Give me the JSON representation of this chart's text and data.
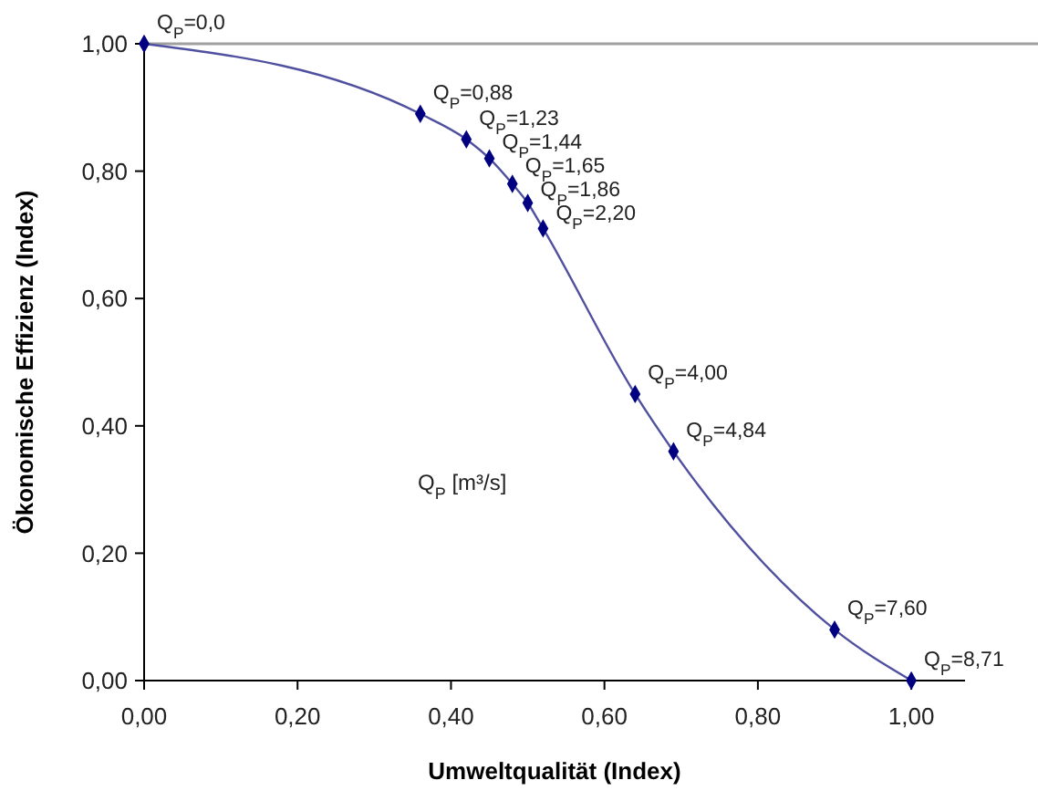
{
  "chart_data": {
    "type": "line",
    "xlabel": "Umweltqualität (Index)",
    "ylabel": "Ökonomische Effizienz (Index)",
    "x": [
      0,
      0.36,
      0.42,
      0.45,
      0.48,
      0.5,
      0.52,
      0.64,
      0.69,
      0.9,
      1.0
    ],
    "series": [
      {
        "color": "#000080",
        "values": [
          1.0,
          0.89,
          0.85,
          0.82,
          0.78,
          0.75,
          0.71,
          0.45,
          0.36,
          0.08,
          0.0
        ]
      }
    ],
    "marker": "diamond",
    "line_style": "solid",
    "grid": false,
    "xlim": [
      0,
      1.07
    ],
    "ylim": [
      0,
      1.0
    ],
    "xticks": [
      {
        "value": 0,
        "label": "0,00"
      },
      {
        "value": 0.2,
        "label": "0,20"
      },
      {
        "value": 0.4,
        "label": "0,40"
      },
      {
        "value": 0.6,
        "label": "0,60"
      },
      {
        "value": 0.8,
        "label": "0,80"
      },
      {
        "value": 1.0,
        "label": "1,00"
      }
    ],
    "yticks": [
      {
        "value": 0,
        "label": "0,00"
      },
      {
        "value": 0.2,
        "label": "0,20"
      },
      {
        "value": 0.4,
        "label": "0,40"
      },
      {
        "value": 0.6,
        "label": "0,60"
      },
      {
        "value": 0.8,
        "label": "0,80"
      },
      {
        "value": 1.0,
        "label": "1,00"
      }
    ],
    "ref_lines": [
      {
        "axis": "y",
        "value": 1.0,
        "color": "#a0a0a0"
      }
    ],
    "annotations": [
      {
        "text": "Q$_{P}$=0,0",
        "x": 0,
        "y": 1.0
      },
      {
        "text": "Q$_{P}$=0,88",
        "x": 0.36,
        "y": 0.89
      },
      {
        "text": "Q$_{P}$=1,23",
        "x": 0.42,
        "y": 0.85
      },
      {
        "text": "Q$_{P}$=1,44",
        "x": 0.45,
        "y": 0.82
      },
      {
        "text": "Q$_{P}$=1,65",
        "x": 0.48,
        "y": 0.78
      },
      {
        "text": "Q$_{P}$=1,86",
        "x": 0.5,
        "y": 0.75
      },
      {
        "text": "Q$_{P}$=2,20",
        "x": 0.52,
        "y": 0.71
      },
      {
        "text": "Q$_{P}$=4,00",
        "x": 0.64,
        "y": 0.45
      },
      {
        "text": "Q$_{P}$=4,84",
        "x": 0.69,
        "y": 0.36
      },
      {
        "text": "Q$_{P}$=7,60",
        "x": 0.9,
        "y": 0.08
      },
      {
        "text": "Q$_{P}$=8,71",
        "x": 1.0,
        "y": 0.0
      },
      "Q$_{P}$ [m³/s]"
    ]
  }
}
